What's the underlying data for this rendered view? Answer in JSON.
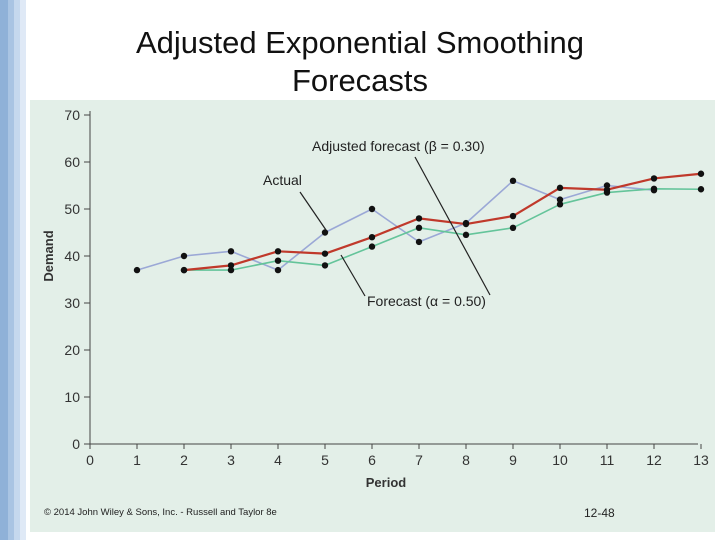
{
  "slide": {
    "title_line1": "Adjusted Exponential Smoothing",
    "title_line2": "Forecasts",
    "copyright": "© 2014 John Wiley & Sons, Inc. - Russell and Taylor 8e",
    "page_number": "12-48"
  },
  "colors": {
    "actual": "#9ba8d6",
    "forecast": "#64c49a",
    "adjusted": "#c0392b",
    "panel": "#e3efe8",
    "left_bar": "#8fb1d8"
  },
  "chart_data": {
    "type": "line",
    "title": "",
    "xlabel": "Period",
    "ylabel": "Demand",
    "xlim": [
      0,
      13
    ],
    "ylim": [
      0,
      70
    ],
    "x_ticks": [
      "0",
      "1",
      "2",
      "3",
      "4",
      "5",
      "6",
      "7",
      "8",
      "9",
      "10",
      "11",
      "12",
      "13"
    ],
    "y_ticks": [
      "0",
      "10",
      "20",
      "30",
      "40",
      "50",
      "60",
      "70"
    ],
    "series": [
      {
        "name": "Actual",
        "key": "actual",
        "x": [
          1,
          2,
          3,
          4,
          5,
          6,
          7,
          8,
          9,
          10,
          11,
          12
        ],
        "y": [
          37,
          40,
          41,
          37,
          45,
          50,
          43,
          47,
          56,
          52,
          55,
          54
        ]
      },
      {
        "name": "Forecast (α = 0.50)",
        "key": "forecast",
        "x": [
          2,
          3,
          4,
          5,
          6,
          7,
          8,
          9,
          10,
          11,
          12,
          13
        ],
        "y": [
          37,
          37,
          39,
          38,
          42,
          46,
          44.5,
          46,
          51,
          53.5,
          54.3,
          54.2
        ]
      },
      {
        "name": "Adjusted forecast (β = 0.30)",
        "key": "adjusted",
        "x": [
          2,
          3,
          4,
          5,
          6,
          7,
          8,
          9,
          10,
          11,
          12,
          13
        ],
        "y": [
          37,
          38,
          41,
          40.5,
          44,
          48,
          46.8,
          48.5,
          54.5,
          54.1,
          56.5,
          57.5
        ]
      }
    ],
    "annotations": [
      {
        "text": "Adjusted forecast (β = 0.30)",
        "series": "adjusted"
      },
      {
        "text": "Actual",
        "series": "actual"
      },
      {
        "text": "Forecast (α = 0.50)",
        "series": "forecast"
      }
    ]
  }
}
